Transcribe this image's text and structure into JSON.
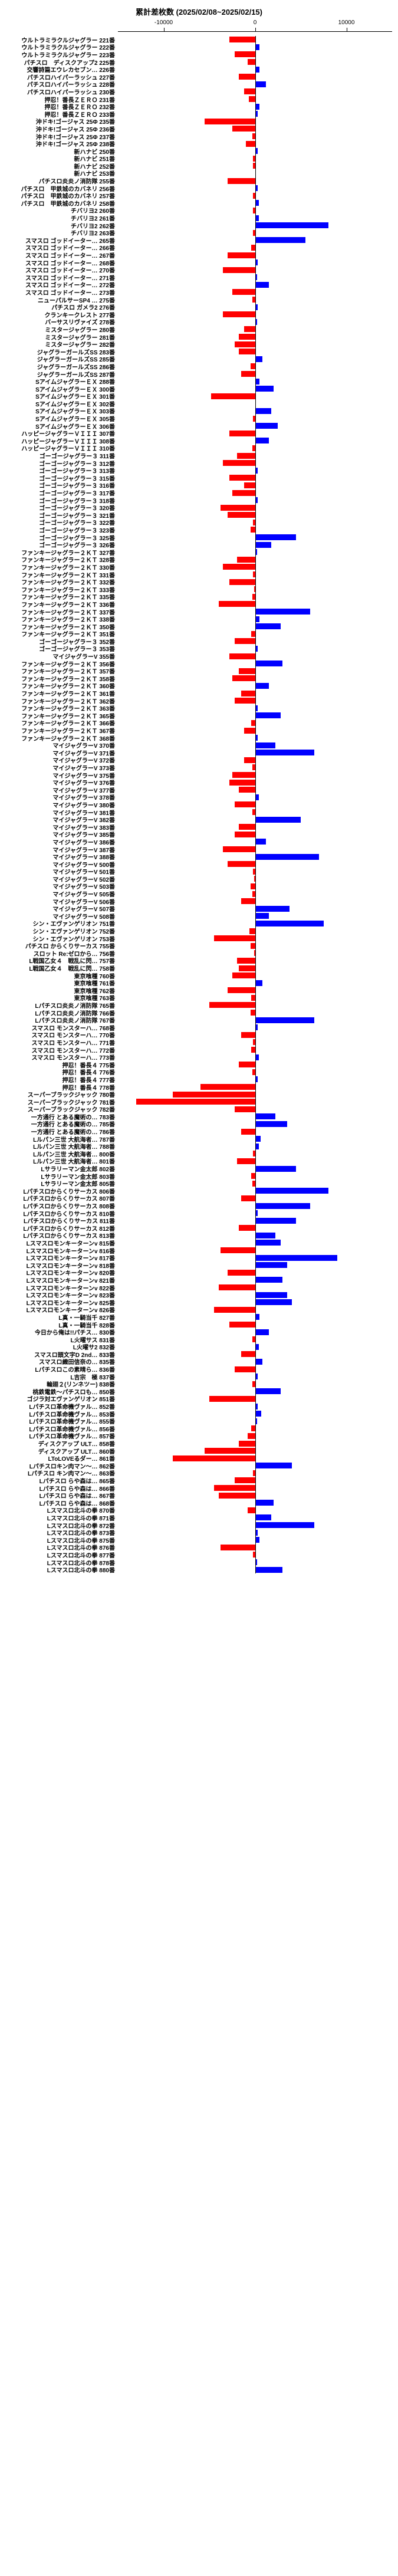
{
  "title": "累計差枚数 (2025/02/08~2025/02/15)",
  "axis": {
    "min": -15000,
    "max": 15000,
    "ticks": [
      {
        "v": -10000,
        "label": "-10000"
      },
      {
        "v": 0,
        "label": "0"
      },
      {
        "v": 10000,
        "label": "10000"
      }
    ]
  },
  "colors": {
    "negative": "#ff0000",
    "positive": "#0000ff",
    "text": "#000000",
    "background": "#ffffff"
  },
  "title_fontsize": 13,
  "label_fontsize": 10,
  "rows": [
    {
      "label": "ウルトラミラクルジャグラー  221番",
      "v": -2800
    },
    {
      "label": "ウルトラミラクルジャグラー  222番",
      "v": 500
    },
    {
      "label": "ウルトラミラクルジャグラー  223番",
      "v": -2200
    },
    {
      "label": "パチスロ　ディスクアップ2  225番",
      "v": -800
    },
    {
      "label": "交響詩篇エウレカセブン…  226番",
      "v": 500
    },
    {
      "label": "パチスロハイパーラッシュ  227番",
      "v": -1800
    },
    {
      "label": "パチスロハイパーラッシュ  228番",
      "v": 1200
    },
    {
      "label": "パチスロハイパーラッシュ  230番",
      "v": -1200
    },
    {
      "label": "押忍！番長ＺＥＲＯ  231番",
      "v": -700
    },
    {
      "label": "押忍！番長ＺＥＲＯ  232番",
      "v": 500
    },
    {
      "label": "押忍！番長ＺＥＲＯ  233番",
      "v": 300
    },
    {
      "label": "沖ドキ!ゴージャス 25Φ  235番",
      "v": -5500
    },
    {
      "label": "沖ドキ!ゴージャス 25Φ  236番",
      "v": -2500
    },
    {
      "label": "沖ドキ!ゴージャス 25Φ  237番",
      "v": -300
    },
    {
      "label": "沖ドキ!ゴージャス 25Φ  238番",
      "v": -1000
    },
    {
      "label": "新ハナビ  250番",
      "v": 300
    },
    {
      "label": "新ハナビ  251番",
      "v": -200
    },
    {
      "label": "新ハナビ  252番",
      "v": -200
    },
    {
      "label": "新ハナビ  253番",
      "v": 100
    },
    {
      "label": "パチスロ炎炎ノ消防隊  255番",
      "v": -3000
    },
    {
      "label": "パチスロ　甲鉄城のカバネリ  256番",
      "v": 300
    },
    {
      "label": "パチスロ　甲鉄城のカバネリ  257番",
      "v": -200
    },
    {
      "label": "パチスロ　甲鉄城のカバネリ  258番",
      "v": 400
    },
    {
      "label": "チバリヨ2  260番",
      "v": -200
    },
    {
      "label": "チバリヨ2  261番",
      "v": 400
    },
    {
      "label": "チバリヨ2  262番",
      "v": 8000
    },
    {
      "label": "チバリヨ2  263番",
      "v": -200
    },
    {
      "label": "スマスロ ゴッドイーター…  265番",
      "v": 5500
    },
    {
      "label": "スマスロ ゴッドイーター…  266番",
      "v": -400
    },
    {
      "label": "スマスロ ゴッドイーター…  267番",
      "v": -3000
    },
    {
      "label": "スマスロ ゴッドイーター…  268番",
      "v": 300
    },
    {
      "label": "スマスロ ゴッドイーター…  270番",
      "v": -3500
    },
    {
      "label": "スマスロ ゴッドイーター…  271番",
      "v": 200
    },
    {
      "label": "スマスロ ゴッドイーター…  272番",
      "v": 1500
    },
    {
      "label": "スマスロ ゴッドイーター…  273番",
      "v": -2500
    },
    {
      "label": "ニューパルサーSP4 …  275番",
      "v": -300
    },
    {
      "label": "パチスロ ガメラ2  276番",
      "v": 300
    },
    {
      "label": "クランキークレスト  277番",
      "v": -3500
    },
    {
      "label": "バーサスリヴァイズ  278番",
      "v": 200
    },
    {
      "label": "ミスタージャグラー  280番",
      "v": -1200
    },
    {
      "label": "ミスタージャグラー  281番",
      "v": -1800
    },
    {
      "label": "ミスタージャグラー  282番",
      "v": -2200
    },
    {
      "label": "ジャグラーガールズSS  283番",
      "v": -1800
    },
    {
      "label": "ジャグラーガールズSS  285番",
      "v": 800
    },
    {
      "label": "ジャグラーガールズSS  286番",
      "v": -500
    },
    {
      "label": "ジャグラーガールズSS  287番",
      "v": -1500
    },
    {
      "label": "SアイムジャグラーＥＸ  288番",
      "v": 500
    },
    {
      "label": "SアイムジャグラーＥＸ  300番",
      "v": 2000
    },
    {
      "label": "SアイムジャグラーＥＸ  301番",
      "v": -4800
    },
    {
      "label": "SアイムジャグラーＥＸ  302番",
      "v": 100
    },
    {
      "label": "SアイムジャグラーＥＸ  303番",
      "v": 1800
    },
    {
      "label": "SアイムジャグラーＥＸ  305番",
      "v": -200
    },
    {
      "label": "SアイムジャグラーＥＸ  306番",
      "v": 2500
    },
    {
      "label": "ハッピージャグラーＶＩＩＩ  307番",
      "v": -2800
    },
    {
      "label": "ハッピージャグラーＶＩＩＩ  308番",
      "v": 1500
    },
    {
      "label": "ハッピージャグラーＶＩＩＩ  310番",
      "v": -300
    },
    {
      "label": "ゴーゴージャグラー３  311番",
      "v": -2000
    },
    {
      "label": "ゴーゴージャグラー３  312番",
      "v": -3500
    },
    {
      "label": "ゴーゴージャグラー３  313番",
      "v": 300
    },
    {
      "label": "ゴーゴージャグラー３  315番",
      "v": -2800
    },
    {
      "label": "ゴーゴージャグラー３  316番",
      "v": -1200
    },
    {
      "label": "ゴーゴージャグラー３  317番",
      "v": -2500
    },
    {
      "label": "ゴーゴージャグラー３  318番",
      "v": 300
    },
    {
      "label": "ゴーゴージャグラー３  320番",
      "v": -3800
    },
    {
      "label": "ゴーゴージャグラー３  321番",
      "v": -3000
    },
    {
      "label": "ゴーゴージャグラー３  322番",
      "v": -200
    },
    {
      "label": "ゴーゴージャグラー３  323番",
      "v": -500
    },
    {
      "label": "ゴーゴージャグラー３  325番",
      "v": 4500
    },
    {
      "label": "ゴーゴージャグラー３  326番",
      "v": 1800
    },
    {
      "label": "ファンキージャグラー２ＫＴ  327番",
      "v": 200
    },
    {
      "label": "ファンキージャグラー２ＫＴ  328番",
      "v": -2000
    },
    {
      "label": "ファンキージャグラー２ＫＴ  330番",
      "v": -3500
    },
    {
      "label": "ファンキージャグラー２ＫＴ  331番",
      "v": -200
    },
    {
      "label": "ファンキージャグラー２ＫＴ  332番",
      "v": -2800
    },
    {
      "label": "ファンキージャグラー２ＫＴ  333番",
      "v": -100
    },
    {
      "label": "ファンキージャグラー２ＫＴ  335番",
      "v": -300
    },
    {
      "label": "ファンキージャグラー２ＫＴ  336番",
      "v": -4000
    },
    {
      "label": "ファンキージャグラー２ＫＴ  337番",
      "v": 6000
    },
    {
      "label": "ファンキージャグラー２ＫＴ  338番",
      "v": 500
    },
    {
      "label": "ファンキージャグラー２ＫＴ  350番",
      "v": 2800
    },
    {
      "label": "ファンキージャグラー２ＫＴ  351番",
      "v": -400
    },
    {
      "label": "ゴーゴージャグラー３  352番",
      "v": -2200
    },
    {
      "label": "ゴーゴージャグラー３  353番",
      "v": 300
    },
    {
      "label": "マイジャグラーV  355番",
      "v": -2800
    },
    {
      "label": "ファンキージャグラー２ＫＴ  356番",
      "v": 3000
    },
    {
      "label": "ファンキージャグラー２ＫＴ  357番",
      "v": -1800
    },
    {
      "label": "ファンキージャグラー２ＫＴ  358番",
      "v": -2500
    },
    {
      "label": "ファンキージャグラー２ＫＴ  360番",
      "v": 1500
    },
    {
      "label": "ファンキージャグラー２ＫＴ  361番",
      "v": -1500
    },
    {
      "label": "ファンキージャグラー２ＫＴ  362番",
      "v": -2200
    },
    {
      "label": "ファンキージャグラー２ＫＴ  363番",
      "v": 300
    },
    {
      "label": "ファンキージャグラー２ＫＴ  365番",
      "v": 2800
    },
    {
      "label": "ファンキージャグラー２ＫＴ  366番",
      "v": -400
    },
    {
      "label": "ファンキージャグラー２ＫＴ  367番",
      "v": -1200
    },
    {
      "label": "ファンキージャグラー２ＫＴ  368番",
      "v": 300
    },
    {
      "label": "マイジャグラーV  370番",
      "v": 2200
    },
    {
      "label": "マイジャグラーV  371番",
      "v": 6500
    },
    {
      "label": "マイジャグラーV  372番",
      "v": -1200
    },
    {
      "label": "マイジャグラーV  373番",
      "v": -300
    },
    {
      "label": "マイジャグラーV  375番",
      "v": -2500
    },
    {
      "label": "マイジャグラーV  376番",
      "v": -2800
    },
    {
      "label": "マイジャグラーV  377番",
      "v": -1800
    },
    {
      "label": "マイジャグラーV  378番",
      "v": 400
    },
    {
      "label": "マイジャグラーV  380番",
      "v": -2200
    },
    {
      "label": "マイジャグラーV  381番",
      "v": -300
    },
    {
      "label": "マイジャグラーV  382番",
      "v": 5000
    },
    {
      "label": "マイジャグラーV  383番",
      "v": -1800
    },
    {
      "label": "マイジャグラーV  385番",
      "v": -2200
    },
    {
      "label": "マイジャグラーV  386番",
      "v": 1200
    },
    {
      "label": "マイジャグラーV  387番",
      "v": -3500
    },
    {
      "label": "マイジャグラーV  388番",
      "v": 7000
    },
    {
      "label": "マイジャグラーV  500番",
      "v": -3000
    },
    {
      "label": "マイジャグラーV  501番",
      "v": -200
    },
    {
      "label": "マイジャグラーV  502番",
      "v": -100
    },
    {
      "label": "マイジャグラーV  503番",
      "v": -500
    },
    {
      "label": "マイジャグラーV  505番",
      "v": -300
    },
    {
      "label": "マイジャグラーV  506番",
      "v": -1500
    },
    {
      "label": "マイジャグラーV  507番",
      "v": 3800
    },
    {
      "label": "マイジャグラーV  508番",
      "v": 1500
    },
    {
      "label": "シン・エヴァンゲリオン  751番",
      "v": 7500
    },
    {
      "label": "シン・エヴァンゲリオン  752番",
      "v": -600
    },
    {
      "label": "シン・エヴァンゲリオン  753番",
      "v": -4500
    },
    {
      "label": "パチスロ からくりサーカス  755番",
      "v": -500
    },
    {
      "label": "スロット Re:ゼロから…  756番",
      "v": -100
    },
    {
      "label": "L戦国乙女４　戦乱に閃…  757番",
      "v": -2000
    },
    {
      "label": "L戦国乙女４　戦乱に閃…  758番",
      "v": -1800
    },
    {
      "label": "東京喰種  760番",
      "v": -2500
    },
    {
      "label": "東京喰種  761番",
      "v": 800
    },
    {
      "label": "東京喰種  762番",
      "v": -3000
    },
    {
      "label": "東京喰種  763番",
      "v": -400
    },
    {
      "label": "Lパチスロ炎炎ノ消防隊  765番",
      "v": -5000
    },
    {
      "label": "Lパチスロ炎炎ノ消防隊  766番",
      "v": -500
    },
    {
      "label": "Lパチスロ炎炎ノ消防隊  767番",
      "v": 6500
    },
    {
      "label": "スマスロ モンスターハ…  768番",
      "v": 300
    },
    {
      "label": "スマスロ モンスターハ…  770番",
      "v": -1500
    },
    {
      "label": "スマスロ モンスターハ…  771番",
      "v": -200
    },
    {
      "label": "スマスロ モンスターハ…  772番",
      "v": -400
    },
    {
      "label": "スマスロ モンスターハ…  773番",
      "v": 400
    },
    {
      "label": "押忍！番長４  775番",
      "v": -1800
    },
    {
      "label": "押忍！番長４  776番",
      "v": -300
    },
    {
      "label": "押忍！番長４  777番",
      "v": 300
    },
    {
      "label": "押忍！番長４  778番",
      "v": -6000
    },
    {
      "label": "スーパーブラックジャック  780番",
      "v": -9000
    },
    {
      "label": "スーパーブラックジャック  781番",
      "v": -13000
    },
    {
      "label": "スーパーブラックジャック  782番",
      "v": -2200
    },
    {
      "label": "一方通行 とある魔術の…  783番",
      "v": 2200
    },
    {
      "label": "一方通行 とある魔術の…  785番",
      "v": 3500
    },
    {
      "label": "一方通行 とある魔術の…  786番",
      "v": -1500
    },
    {
      "label": "Lルパン三世 大航海者…  787番",
      "v": 600
    },
    {
      "label": "Lルパン三世 大航海者…  788番",
      "v": 400
    },
    {
      "label": "Lルパン三世 大航海者…  800番",
      "v": -200
    },
    {
      "label": "Lルパン三世 大航海者…  801番",
      "v": -2000
    },
    {
      "label": "Lサラリーマン金太郎  802番",
      "v": 4500
    },
    {
      "label": "Lサラリーマン金太郎  803番",
      "v": -400
    },
    {
      "label": "Lサラリーマン金太郎  805番",
      "v": -300
    },
    {
      "label": "Lパチスロからくりサーカス  806番",
      "v": 8000
    },
    {
      "label": "Lパチスロからくりサーカス  807番",
      "v": -1500
    },
    {
      "label": "Lパチスロからくりサーカス  808番",
      "v": 6000
    },
    {
      "label": "Lパチスロからくりサーカス  810番",
      "v": 300
    },
    {
      "label": "Lパチスロからくりサーカス  811番",
      "v": 4500
    },
    {
      "label": "Lパチスロからくりサーカス  812番",
      "v": -1800
    },
    {
      "label": "Lパチスロからくりサーカス  813番",
      "v": 2200
    },
    {
      "label": "Lスマスロモンキーターンv  815番",
      "v": 2800
    },
    {
      "label": "Lスマスロモンキーターンv  816番",
      "v": -3800
    },
    {
      "label": "Lスマスロモンキーターンv  817番",
      "v": 9000
    },
    {
      "label": "Lスマスロモンキーターンv  818番",
      "v": 3500
    },
    {
      "label": "Lスマスロモンキーターンv  820番",
      "v": -3000
    },
    {
      "label": "Lスマスロモンキーターンv  821番",
      "v": 3000
    },
    {
      "label": "Lスマスロモンキーターンv  822番",
      "v": -4000
    },
    {
      "label": "Lスマスロモンキーターンv  823番",
      "v": 3500
    },
    {
      "label": "Lスマスロモンキーターンv  825番",
      "v": 4000
    },
    {
      "label": "Lスマスロモンキーターンv  826番",
      "v": -4500
    },
    {
      "label": "L真・一騎当千  827番",
      "v": 500
    },
    {
      "label": "L真・一騎当千  828番",
      "v": -2800
    },
    {
      "label": "今日から俺は!!パチス…  830番",
      "v": 1500
    },
    {
      "label": "L火曜サス  831番",
      "v": -300
    },
    {
      "label": "L火曜サ2  832番",
      "v": 400
    },
    {
      "label": "スマスロ頭文字D 2nd…  833番",
      "v": -1500
    },
    {
      "label": "スマスロ織田信奈の…  835番",
      "v": 800
    },
    {
      "label": "Lパチスロこの素晴ら…  836番",
      "v": -2200
    },
    {
      "label": "L吉宗　極  837番",
      "v": 300
    },
    {
      "label": "輪廻２(リンネツー)  838番",
      "v": -300
    },
    {
      "label": "桃鉄電鉄～パチスロも…  850番",
      "v": 2800
    },
    {
      "label": "ゴジラ対エヴァンゲリオン  851番",
      "v": -5000
    },
    {
      "label": "Lパチスロ革命機ヴァル…  852番",
      "v": 300
    },
    {
      "label": "Lパチスロ革命機ヴァル…  853番",
      "v": 700
    },
    {
      "label": "Lパチスロ革命機ヴァル…  855番",
      "v": 200
    },
    {
      "label": "Lパチスロ革命機ヴァル…  856番",
      "v": -400
    },
    {
      "label": "Lパチスロ革命機ヴァル…  857番",
      "v": -800
    },
    {
      "label": "ディスクアップ ULT…  858番",
      "v": -1800
    },
    {
      "label": "ディスクアップ ULT…  860番",
      "v": -5500
    },
    {
      "label": "LToLOVEるダー…  861番",
      "v": -9000
    },
    {
      "label": "Lパチスロキン肉マン～…  862番",
      "v": 4000
    },
    {
      "label": "Lパチスロ キン肉マン～…  863番",
      "v": -200
    },
    {
      "label": "Lパチスロ らや森は…  865番",
      "v": -2200
    },
    {
      "label": "Lパチスロ らや森は…  866番",
      "v": -4500
    },
    {
      "label": "Lパチスロ らや森は…  867番",
      "v": -4000
    },
    {
      "label": "Lパチスロ らや森は…  868番",
      "v": 2000
    },
    {
      "label": "Lスマスロ北斗の拳  870番",
      "v": -800
    },
    {
      "label": "Lスマスロ北斗の拳  871番",
      "v": 1800
    },
    {
      "label": "Lスマスロ北斗の拳  872番",
      "v": 6500
    },
    {
      "label": "Lスマスロ北斗の拳  873番",
      "v": 300
    },
    {
      "label": "Lスマスロ北斗の拳  875番",
      "v": 500
    },
    {
      "label": "Lスマスロ北斗の拳  876番",
      "v": -3800
    },
    {
      "label": "Lスマスロ北斗の拳  877番",
      "v": -200
    },
    {
      "label": "Lスマスロ北斗の拳  878番",
      "v": 200
    },
    {
      "label": "Lスマスロ北斗の拳  880番",
      "v": 3000
    }
  ]
}
